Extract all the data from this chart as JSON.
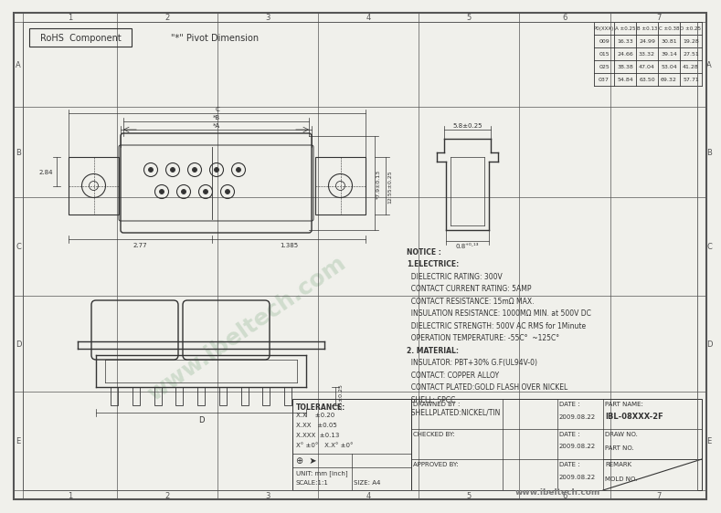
{
  "bg_color": "#f0f0eb",
  "border_color": "#555555",
  "drawing_color": "#333333",
  "watermark_color": "#b0c8b0",
  "grid_rows": [
    "A",
    "B",
    "C",
    "D",
    "E"
  ],
  "grid_cols": [
    "1",
    "2",
    "3",
    "4",
    "5",
    "6",
    "7"
  ],
  "rohs_text": "RoHS  Component",
  "pivot_text": "\"*\" Pivot Dimension",
  "table_headers": [
    "P0(XXX)",
    "A ±0.25",
    "B ±0.13",
    "C ±0.38",
    "D ±0.25"
  ],
  "table_data": [
    [
      "009",
      "16.33",
      "24.99",
      "30.81",
      "19.28"
    ],
    [
      "015",
      "24.66",
      "33.32",
      "39.14",
      "27.51"
    ],
    [
      "025",
      "38.38",
      "47.04",
      "53.04",
      "41.28"
    ],
    [
      "037",
      "54.84",
      "63.50",
      "69.32",
      "57.71"
    ]
  ],
  "notice_lines": [
    "NOTICE :",
    "1.ELECTRICE:",
    "  DIELECTRIC RATING: 300V",
    "  CONTACT CURRENT RATING: 5AMP",
    "  CONTACT RESISTANCE: 15mΩ MAX.",
    "  INSULATION RESISTANCE: 1000MΩ MIN. at 500V DC",
    "  DIELECTRIC STRENGTH: 500V AC RMS for 1Minute",
    "  OPERATION TEMPERATURE: -55C°  ~125C°",
    "2. MATERIAL:",
    "  INSULATOR: PBT+30% G.F(UL94V-0)",
    "  CONTACT: COPPER ALLOY",
    "  CONTACT PLATED:GOLD FLASH OVER NICKEL",
    "  SHELL: SPCC",
    "  SHELLPLATED:NICKEL/TIN"
  ],
  "tolerance_lines": [
    "TOLERANCE:",
    "X.X    ±0.20",
    "X.XX   ±0.05",
    "X.XXX  ±0.13",
    "X° ±0°   X.X° ±0°"
  ],
  "unit_text": "UNIT: mm [inch]",
  "scale_text": "SCALE:1:1",
  "size_text": "SIZE: A4",
  "drawn_date": "2009.08.22",
  "checked_date": "2009.08.22",
  "approved_date": "2009.08.22",
  "part_name": "IBL-08XXX-2F",
  "website": "www.ibeltech.com",
  "dim_7_9": "*7.9±0.13",
  "dim_12_55": "12.55±0.25",
  "dim_5_8": "5.8±0.25",
  "dim_0_8": "0.8",
  "dim_2_77": "2.77",
  "dim_1_385": "1.385",
  "dim_2_84": "2.84",
  "dim_3_5": "3.5±0.25",
  "dim_A": "*A",
  "dim_B": "*B",
  "dim_C": "C",
  "dim_D": "D"
}
